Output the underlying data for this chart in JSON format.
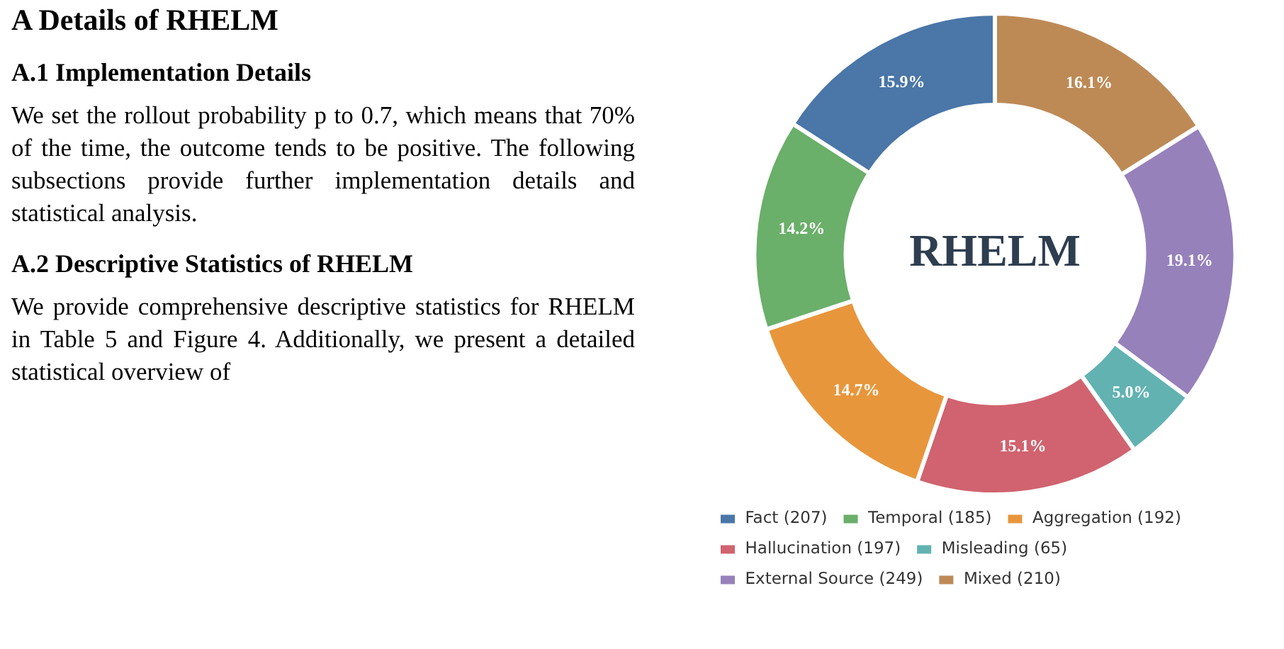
{
  "chart_data": {
    "type": "donut",
    "title": "RHELM",
    "categories": [
      "Fact (207)",
      "Temporal (185)",
      "Aggregation (192)",
      "Hallucination (197)",
      "Misleading (65)",
      "External Source (249)",
      "Mixed (210)"
    ],
    "values": [
      15.9,
      14.2,
      14.7,
      15.1,
      5.0,
      19.1,
      16.1
    ],
    "value_labels": [
      "15.9%",
      "14.2%",
      "14.7%",
      "15.1%",
      "5.0%",
      "19.1%",
      "16.1%"
    ],
    "colors": [
      "#4a76a8",
      "#6aaf6a",
      "#e8963c",
      "#d0636f",
      "#62b2b2",
      "#9681bb",
      "#bd8a56"
    ],
    "legend": "bottom",
    "annotations": [
      "A   Details of RHELM",
      "A.1   Implementation Details",
      "We set the rollout probability p to 0.7, which means that 70% of the time, the outcome tends to be positive. The following subsections provide further implementation details and statistical analysis.",
      "A.2   Descriptive Statistics of RHELM",
      "We provide comprehensive descriptive statistics for RHELM in Table 5 and Figure 4. Additionally, we present a detailed statistical overview of"
    ]
  }
}
